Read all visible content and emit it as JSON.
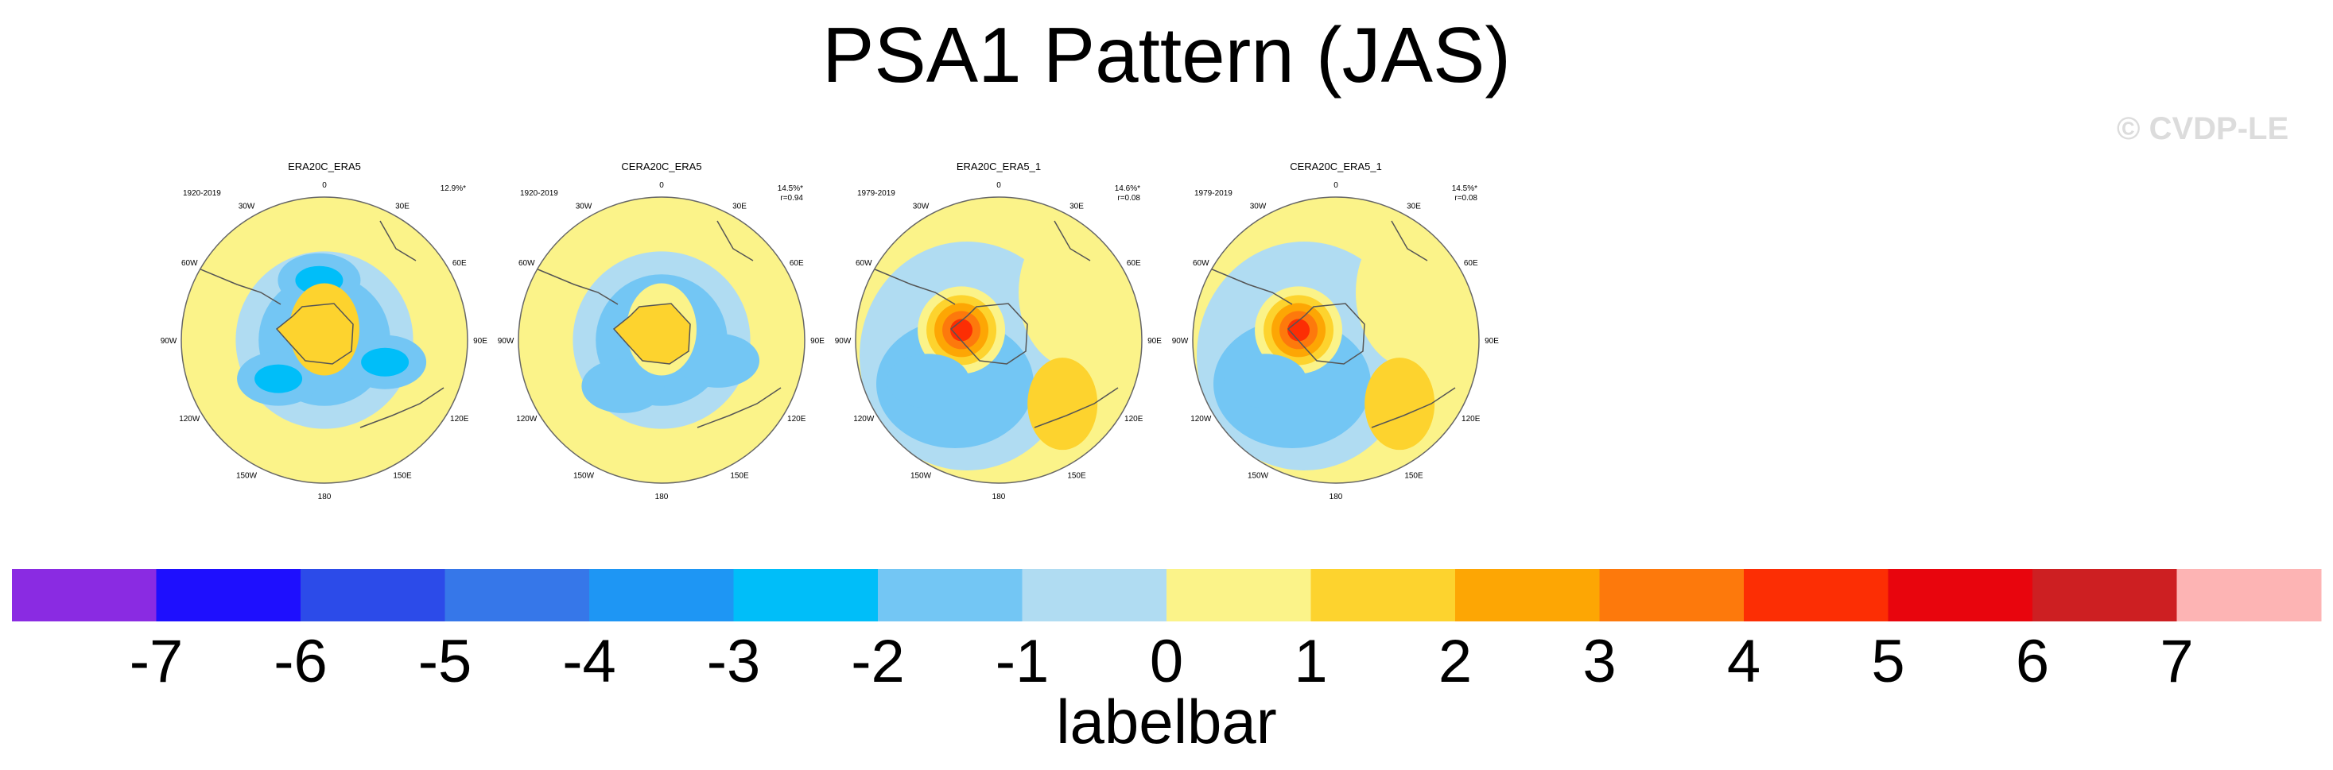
{
  "title": "PSA1 Pattern (JAS)",
  "watermark": "© CVDP-LE",
  "chart_data": {
    "type": "contour-map",
    "projection": "south polar stereographic",
    "title": "PSA1 Pattern (JAS)",
    "panels": [
      {
        "name": "ERA20C_ERA5",
        "period": "1920-2019",
        "variance": "12.9%*",
        "correlation": "",
        "features": [
          {
            "sign": "neg",
            "level": -3,
            "lon": 110,
            "colat": 30
          },
          {
            "sign": "neg",
            "level": -3,
            "lon": -5,
            "colat": 28
          },
          {
            "sign": "neg",
            "level": -3,
            "lon": -130,
            "colat": 28
          },
          {
            "sign": "pos",
            "level": 2,
            "lon": 0,
            "colat": 5
          }
        ]
      },
      {
        "name": "CERA20C_ERA5",
        "period": "1920-2019",
        "variance": "14.5%*",
        "correlation": "r=0.94",
        "features": [
          {
            "sign": "neg",
            "level": -2,
            "lon": 110,
            "colat": 28
          },
          {
            "sign": "neg",
            "level": -2,
            "lon": -140,
            "colat": 28
          },
          {
            "sign": "pos",
            "level": 1,
            "lon": 0,
            "colat": 5
          }
        ]
      },
      {
        "name": "ERA20C_ERA5_1",
        "period": "1979-2019",
        "variance": "14.6%*",
        "correlation": "r=0.08",
        "features": [
          {
            "sign": "pos",
            "level": 5,
            "lon": -75,
            "colat": 18
          },
          {
            "sign": "pos",
            "level": 2,
            "lon": 135,
            "colat": 42
          },
          {
            "sign": "neg",
            "level": -2,
            "lon": -120,
            "colat": 38
          }
        ]
      },
      {
        "name": "CERA20C_ERA5_1",
        "period": "1979-2019",
        "variance": "14.5%*",
        "correlation": "r=0.08",
        "features": [
          {
            "sign": "pos",
            "level": 5,
            "lon": -75,
            "colat": 18
          },
          {
            "sign": "pos",
            "level": 2,
            "lon": 135,
            "colat": 42
          },
          {
            "sign": "neg",
            "level": -2,
            "lon": -120,
            "colat": 38
          }
        ]
      }
    ],
    "longitude_labels": [
      "0",
      "30E",
      "60E",
      "90E",
      "120E",
      "150E",
      "180",
      "150W",
      "120W",
      "90W",
      "60W",
      "30W"
    ],
    "longitude_values": [
      0,
      30,
      60,
      90,
      120,
      150,
      180,
      -150,
      -120,
      -90,
      -60,
      -30
    ],
    "colorbar": {
      "title": "labelbar",
      "tick_labels": [
        "-7",
        "-6",
        "-5",
        "-4",
        "-3",
        "-2",
        "-1",
        "0",
        "1",
        "2",
        "3",
        "4",
        "5",
        "6",
        "7"
      ],
      "colors": [
        "#8a2be2",
        "#1e0ffe",
        "#2c4be9",
        "#3677e9",
        "#1e96f4",
        "#00bef9",
        "#73c6f4",
        "#b0dcf2",
        "#fbf389",
        "#fdd32e",
        "#fda604",
        "#fd790c",
        "#fc2e04",
        "#e8050d",
        "#cd1f22",
        "#fdb4b4"
      ]
    }
  }
}
